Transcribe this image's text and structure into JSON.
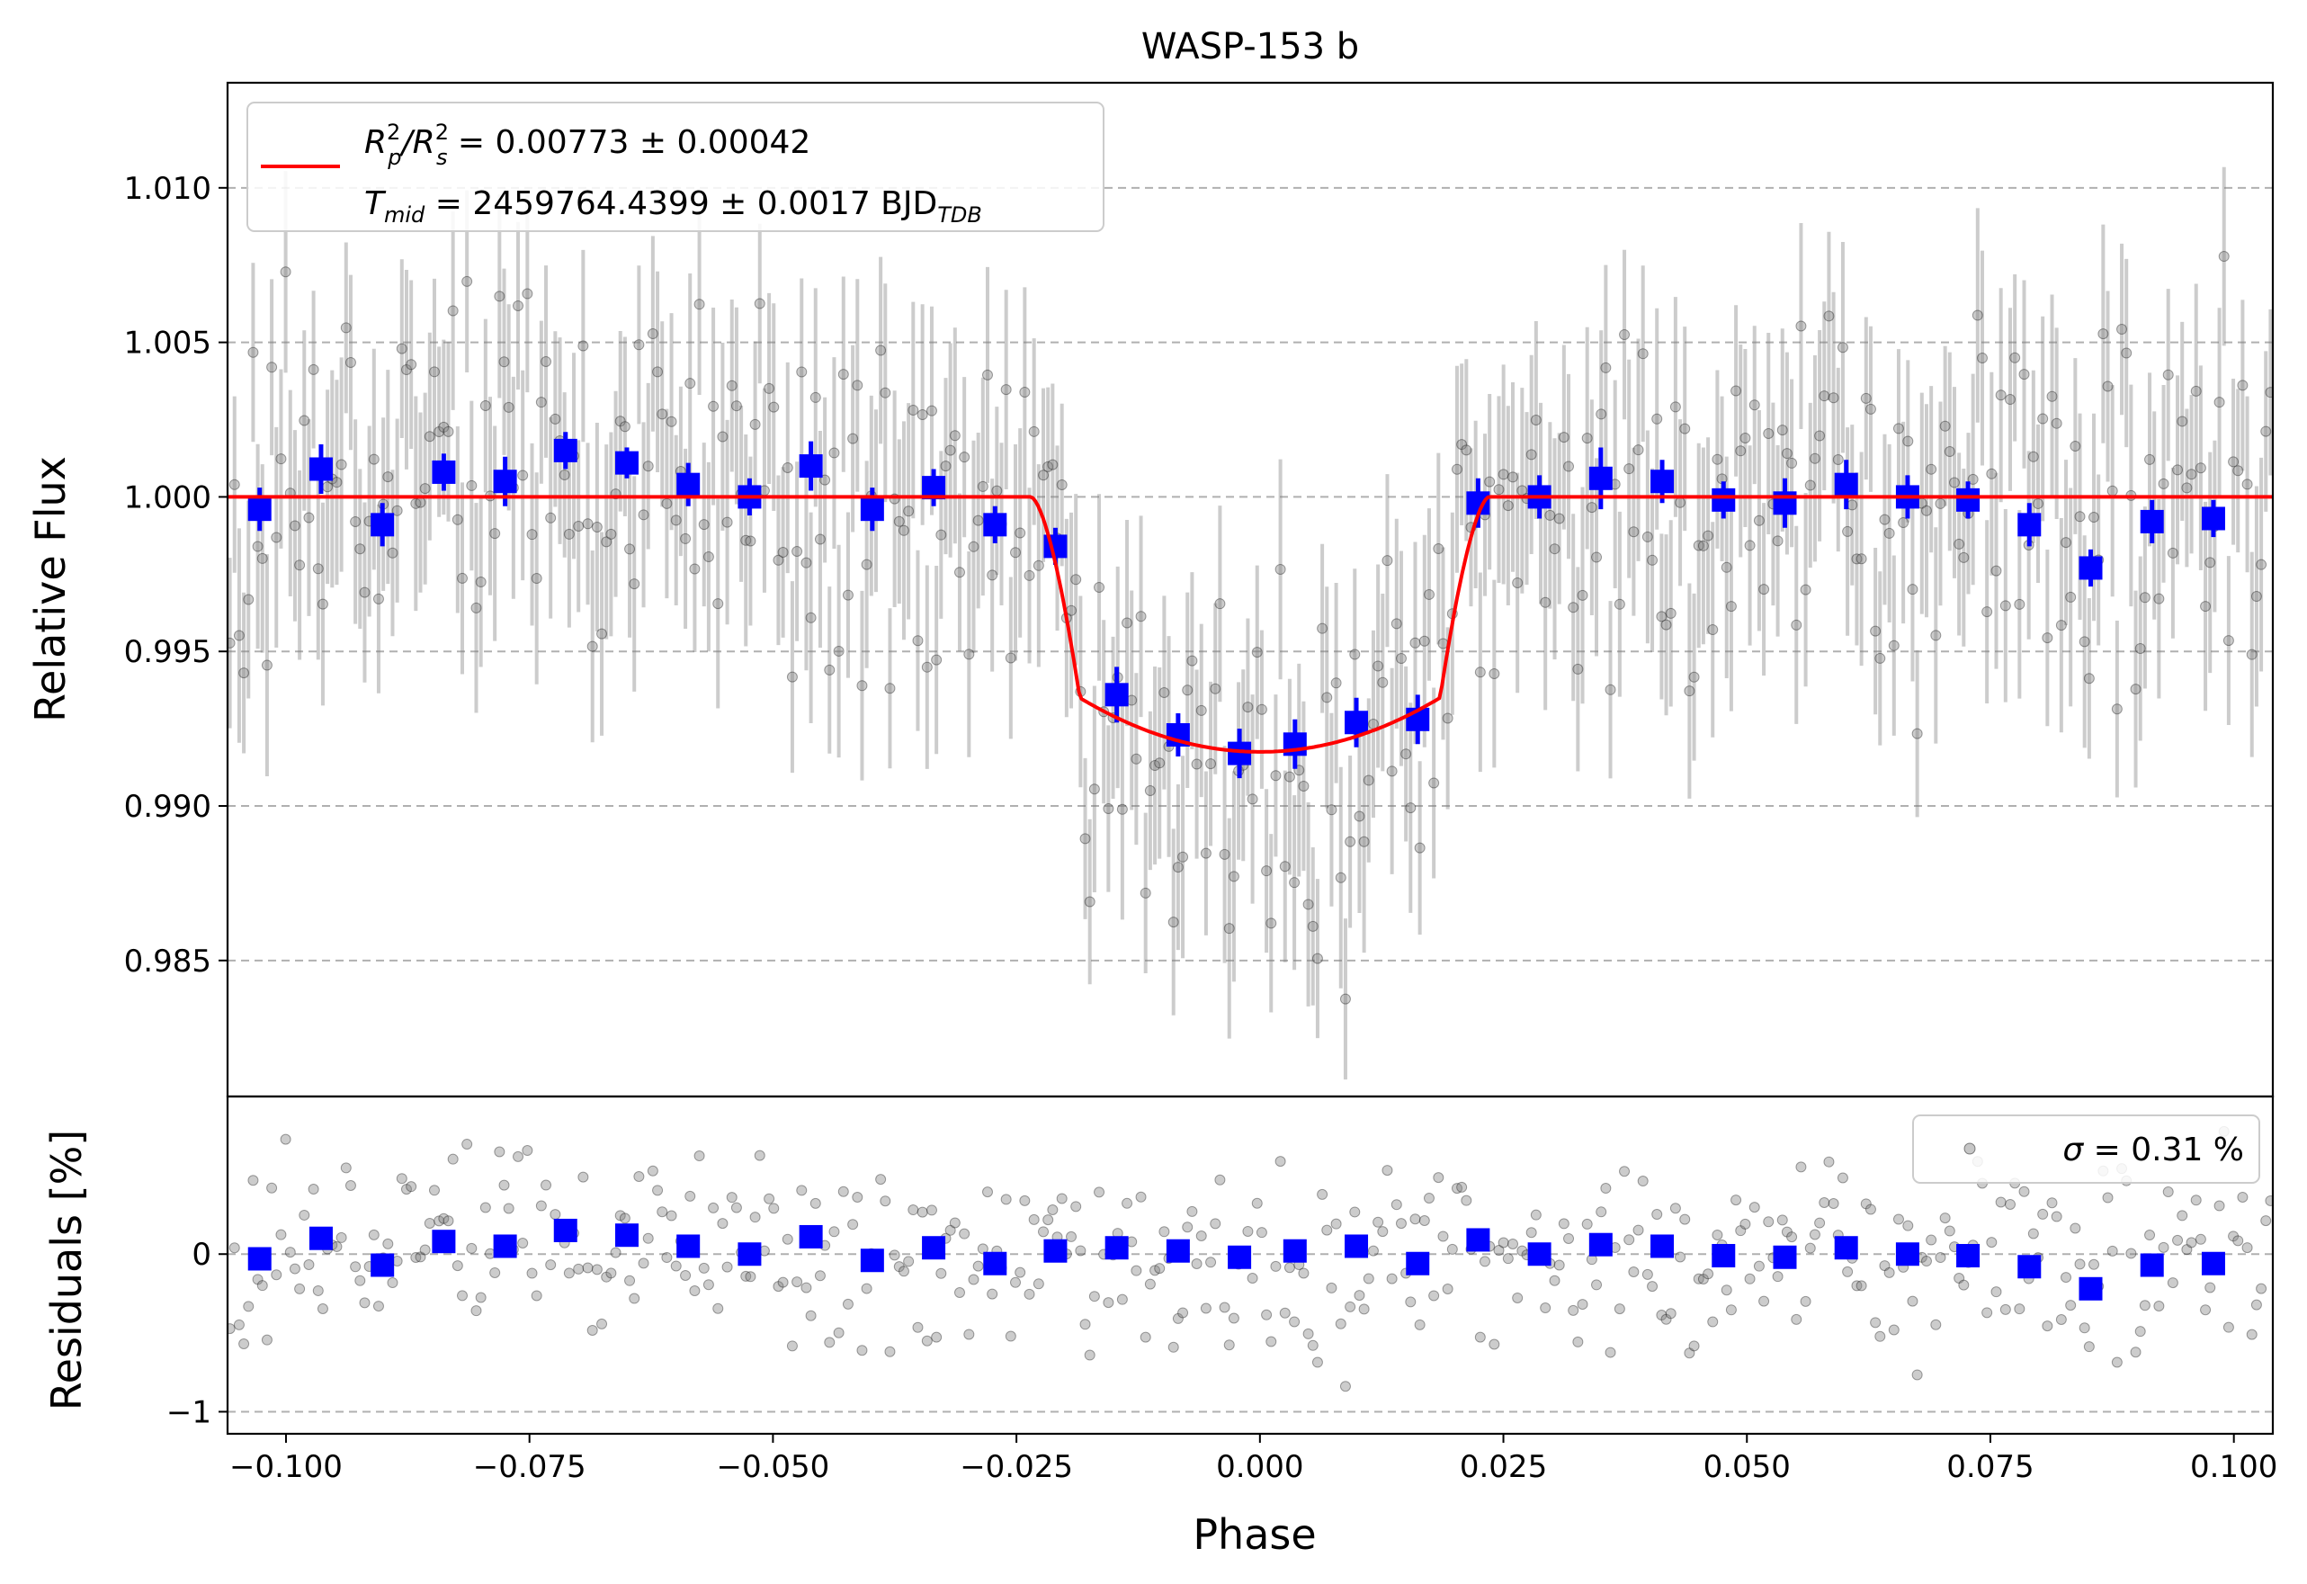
{
  "chart_data": [
    {
      "type": "scatter",
      "title": "WASP-153 b",
      "xlabel": "",
      "ylabel": "Relative Flux",
      "xlim": [
        -0.106,
        0.104
      ],
      "ylim": [
        0.9806,
        1.0134
      ],
      "yticks": [
        0.985,
        0.99,
        0.995,
        1.0,
        1.005,
        1.01
      ],
      "ytick_labels": [
        "0.985",
        "0.990",
        "0.995",
        "1.000",
        "1.005",
        "1.010"
      ],
      "grid": "horizontal dashed",
      "legend": {
        "placement": "top-left",
        "line1_prefix": "R",
        "line1_sup1": "2",
        "line1_sub1": "p",
        "line1_mid": "/R",
        "line1_sup2": "2",
        "line1_sub2": "s",
        "line1_value": " = 0.00773 ± 0.00042",
        "line2_prefix": "T",
        "line2_sub": "mid",
        "line2_value": " = 2459764.4399 ± 0.0017 BJD",
        "line2_sub2": "TDB"
      },
      "model": {
        "name": "transit model",
        "depth": 0.00773,
        "t1_phase": -0.0235,
        "t2_phase": -0.0185,
        "t3_phase": 0.0185,
        "t4_phase": 0.0235,
        "min_flux": 0.99175,
        "color": "#ff0000"
      },
      "binned": {
        "name": "binned data",
        "color": "#0000ff",
        "x": [
          -0.1027,
          -0.0964,
          -0.0901,
          -0.0838,
          -0.0775,
          -0.0713,
          -0.065,
          -0.0587,
          -0.0524,
          -0.0461,
          -0.0398,
          -0.0335,
          -0.0272,
          -0.021,
          -0.0147,
          -0.0084,
          -0.0021,
          0.0036,
          0.0099,
          0.0162,
          0.0224,
          0.0287,
          0.035,
          0.0413,
          0.0476,
          0.0539,
          0.0602,
          0.0665,
          0.0727,
          0.079,
          0.0853,
          0.0916,
          0.0979
        ],
        "y": [
          0.9996,
          1.0009,
          0.9991,
          1.0008,
          1.0005,
          1.0015,
          1.0011,
          1.0004,
          1.0,
          1.001,
          0.9996,
          1.0003,
          0.9991,
          0.9984,
          0.9936,
          0.9923,
          0.9917,
          0.992,
          0.9927,
          0.9928,
          0.9998,
          1.0,
          1.0006,
          1.0005,
          0.9999,
          0.9998,
          1.0004,
          1.0,
          0.9999,
          0.9991,
          0.9977,
          0.9992,
          0.9993
        ],
        "err": [
          0.0007,
          0.0008,
          0.0007,
          0.0006,
          0.0008,
          0.0006,
          0.0005,
          0.0007,
          0.0006,
          0.0008,
          0.0007,
          0.0006,
          0.0006,
          0.0006,
          0.0009,
          0.0007,
          0.0008,
          0.0008,
          0.0008,
          0.0008,
          0.0008,
          0.0007,
          0.001,
          0.0007,
          0.0006,
          0.0008,
          0.0008,
          0.0007,
          0.0006,
          0.0007,
          0.0006,
          0.0007,
          0.0006
        ]
      },
      "unbinned": {
        "name": "individual exposures",
        "color": "#808080",
        "n_points": 440,
        "typical_err": 0.003,
        "scatter": 0.0031
      }
    },
    {
      "type": "scatter",
      "title": "",
      "xlabel": "Phase",
      "ylabel": "Residuals [%]",
      "xlim": [
        -0.106,
        0.104
      ],
      "ylim": [
        -1.14,
        1.0
      ],
      "yticks": [
        -1,
        0
      ],
      "ytick_labels": [
        "−1",
        "0"
      ],
      "xticks": [
        -0.1,
        -0.075,
        -0.05,
        -0.025,
        0,
        0.025,
        0.05,
        0.075,
        0.1
      ],
      "xtick_labels": [
        "−0.100",
        "−0.075",
        "−0.050",
        "−0.025",
        "0.000",
        "0.025",
        "0.050",
        "0.075",
        "0.100"
      ],
      "grid": "horizontal dashed",
      "legend": {
        "placement": "top-right",
        "symbol": "σ",
        "text": " = 0.31 %"
      },
      "binned": {
        "name": "binned residuals",
        "color": "#0000ff",
        "x": [
          -0.1027,
          -0.0964,
          -0.0901,
          -0.0838,
          -0.0775,
          -0.0713,
          -0.065,
          -0.0587,
          -0.0524,
          -0.0461,
          -0.0398,
          -0.0335,
          -0.0272,
          -0.021,
          -0.0147,
          -0.0084,
          -0.0021,
          0.0036,
          0.0099,
          0.0162,
          0.0224,
          0.0287,
          0.035,
          0.0413,
          0.0476,
          0.0539,
          0.0602,
          0.0665,
          0.0727,
          0.079,
          0.0853,
          0.0916,
          0.0979
        ],
        "y": [
          -0.03,
          0.1,
          -0.07,
          0.08,
          0.05,
          0.15,
          0.12,
          0.05,
          0.0,
          0.11,
          -0.04,
          0.04,
          -0.06,
          0.02,
          0.04,
          0.02,
          -0.02,
          0.02,
          0.05,
          -0.06,
          0.09,
          0.0,
          0.06,
          0.05,
          -0.01,
          -0.02,
          0.04,
          0.0,
          -0.01,
          -0.08,
          -0.22,
          -0.07,
          -0.06
        ]
      },
      "residual_scatter_percent": 0.31
    }
  ]
}
